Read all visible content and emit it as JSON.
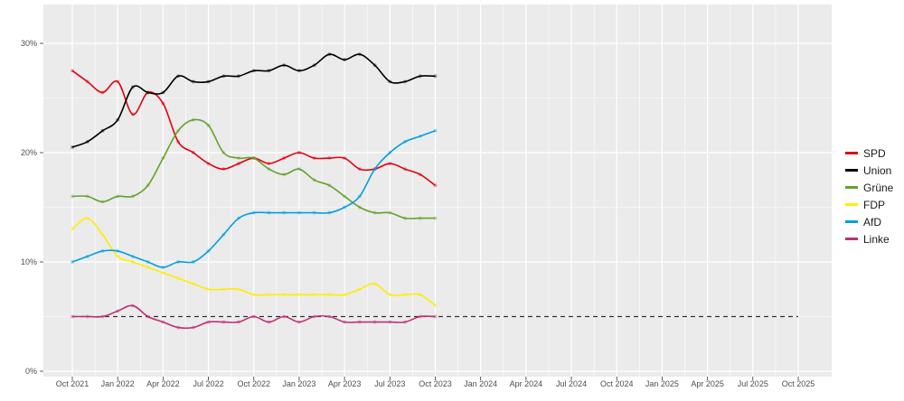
{
  "chart_data": {
    "type": "line",
    "x_unit": "month",
    "x_tick_labels": [
      "Oct 2021",
      "Jan 2022",
      "Apr 2022",
      "Jul 2022",
      "Oct 2022",
      "Jan 2023",
      "Apr 2023",
      "Jul 2023",
      "Oct 2023",
      "Jan 2024",
      "Apr 2024",
      "Jul 2024",
      "Oct 2024",
      "Jan 2025",
      "Apr 2025",
      "Jul 2025",
      "Oct 2025"
    ],
    "y_tick_labels": [
      "0%",
      "10%",
      "20%",
      "30%"
    ],
    "ylim": [
      0,
      32
    ],
    "grid": true,
    "legend_position": "right",
    "reference_line": {
      "value": 5,
      "from": "2021-10",
      "to": "2025-10",
      "style": "dashed"
    },
    "series": [
      {
        "name": "SPD",
        "color": "#e3000f",
        "x": [
          "2021-10",
          "2021-11",
          "2021-12",
          "2022-01",
          "2022-02",
          "2022-03",
          "2022-04",
          "2022-05",
          "2022-06",
          "2022-07",
          "2022-08",
          "2022-09",
          "2022-10",
          "2022-11",
          "2022-12",
          "2023-01",
          "2023-02",
          "2023-03",
          "2023-04",
          "2023-05",
          "2023-06",
          "2023-07",
          "2023-08",
          "2023-09",
          "2023-10"
        ],
        "y": [
          27.5,
          26.5,
          25.5,
          26.5,
          23.5,
          25.5,
          24.5,
          21,
          20,
          19,
          18.5,
          19,
          19.5,
          19,
          19.5,
          20,
          19.5,
          19.5,
          19.5,
          18.5,
          18.5,
          19,
          18.5,
          18,
          17
        ]
      },
      {
        "name": "Union",
        "color": "#000000",
        "x": [
          "2021-10",
          "2021-11",
          "2021-12",
          "2022-01",
          "2022-02",
          "2022-03",
          "2022-04",
          "2022-05",
          "2022-06",
          "2022-07",
          "2022-08",
          "2022-09",
          "2022-10",
          "2022-11",
          "2022-12",
          "2023-01",
          "2023-02",
          "2023-03",
          "2023-04",
          "2023-05",
          "2023-06",
          "2023-07",
          "2023-08",
          "2023-09",
          "2023-10"
        ],
        "y": [
          20.5,
          21,
          22,
          23,
          26,
          25.5,
          25.5,
          27,
          26.5,
          26.5,
          27,
          27,
          27.5,
          27.5,
          28,
          27.5,
          28,
          29,
          28.5,
          29,
          28,
          26.5,
          26.5,
          27,
          27
        ]
      },
      {
        "name": "Grüne",
        "color": "#64a12d",
        "x": [
          "2021-10",
          "2021-11",
          "2021-12",
          "2022-01",
          "2022-02",
          "2022-03",
          "2022-04",
          "2022-05",
          "2022-06",
          "2022-07",
          "2022-08",
          "2022-09",
          "2022-10",
          "2022-11",
          "2022-12",
          "2023-01",
          "2023-02",
          "2023-03",
          "2023-04",
          "2023-05",
          "2023-06",
          "2023-07",
          "2023-08",
          "2023-09",
          "2023-10"
        ],
        "y": [
          16,
          16,
          15.5,
          16,
          16,
          17,
          19.5,
          22,
          23,
          22.5,
          20,
          19.5,
          19.5,
          18.5,
          18,
          18.5,
          17.5,
          17,
          16,
          15,
          14.5,
          14.5,
          14,
          14,
          14
        ]
      },
      {
        "name": "FDP",
        "color": "#ffed00",
        "x": [
          "2021-10",
          "2021-11",
          "2021-12",
          "2022-01",
          "2022-02",
          "2022-03",
          "2022-04",
          "2022-05",
          "2022-06",
          "2022-07",
          "2022-08",
          "2022-09",
          "2022-10",
          "2022-11",
          "2022-12",
          "2023-01",
          "2023-02",
          "2023-03",
          "2023-04",
          "2023-05",
          "2023-06",
          "2023-07",
          "2023-08",
          "2023-09",
          "2023-10"
        ],
        "y": [
          13,
          14,
          12.5,
          10.5,
          10,
          9.5,
          9,
          8.5,
          8,
          7.5,
          7.5,
          7.5,
          7,
          7,
          7,
          7,
          7,
          7,
          7,
          7.5,
          8,
          7,
          7,
          7,
          6
        ]
      },
      {
        "name": "AfD",
        "color": "#009ee0",
        "x": [
          "2021-10",
          "2021-11",
          "2021-12",
          "2022-01",
          "2022-02",
          "2022-03",
          "2022-04",
          "2022-05",
          "2022-06",
          "2022-07",
          "2022-08",
          "2022-09",
          "2022-10",
          "2022-11",
          "2022-12",
          "2023-01",
          "2023-02",
          "2023-03",
          "2023-04",
          "2023-05",
          "2023-06",
          "2023-07",
          "2023-08",
          "2023-09",
          "2023-10"
        ],
        "y": [
          10,
          10.5,
          11,
          11,
          10.5,
          10,
          9.5,
          10,
          10,
          11,
          12.5,
          14,
          14.5,
          14.5,
          14.5,
          14.5,
          14.5,
          14.5,
          15,
          16,
          18.5,
          20,
          21,
          21.5,
          22
        ]
      },
      {
        "name": "Linke",
        "color": "#be3075",
        "x": [
          "2021-10",
          "2021-11",
          "2021-12",
          "2022-01",
          "2022-02",
          "2022-03",
          "2022-04",
          "2022-05",
          "2022-06",
          "2022-07",
          "2022-08",
          "2022-09",
          "2022-10",
          "2022-11",
          "2022-12",
          "2023-01",
          "2023-02",
          "2023-03",
          "2023-04",
          "2023-05",
          "2023-06",
          "2023-07",
          "2023-08",
          "2023-09",
          "2023-10"
        ],
        "y": [
          5,
          5,
          5,
          5.5,
          6,
          5,
          4.5,
          4,
          4,
          4.5,
          4.5,
          4.5,
          5,
          4.5,
          5,
          4.5,
          5,
          5,
          4.5,
          4.5,
          4.5,
          4.5,
          4.5,
          5,
          5
        ]
      }
    ]
  }
}
